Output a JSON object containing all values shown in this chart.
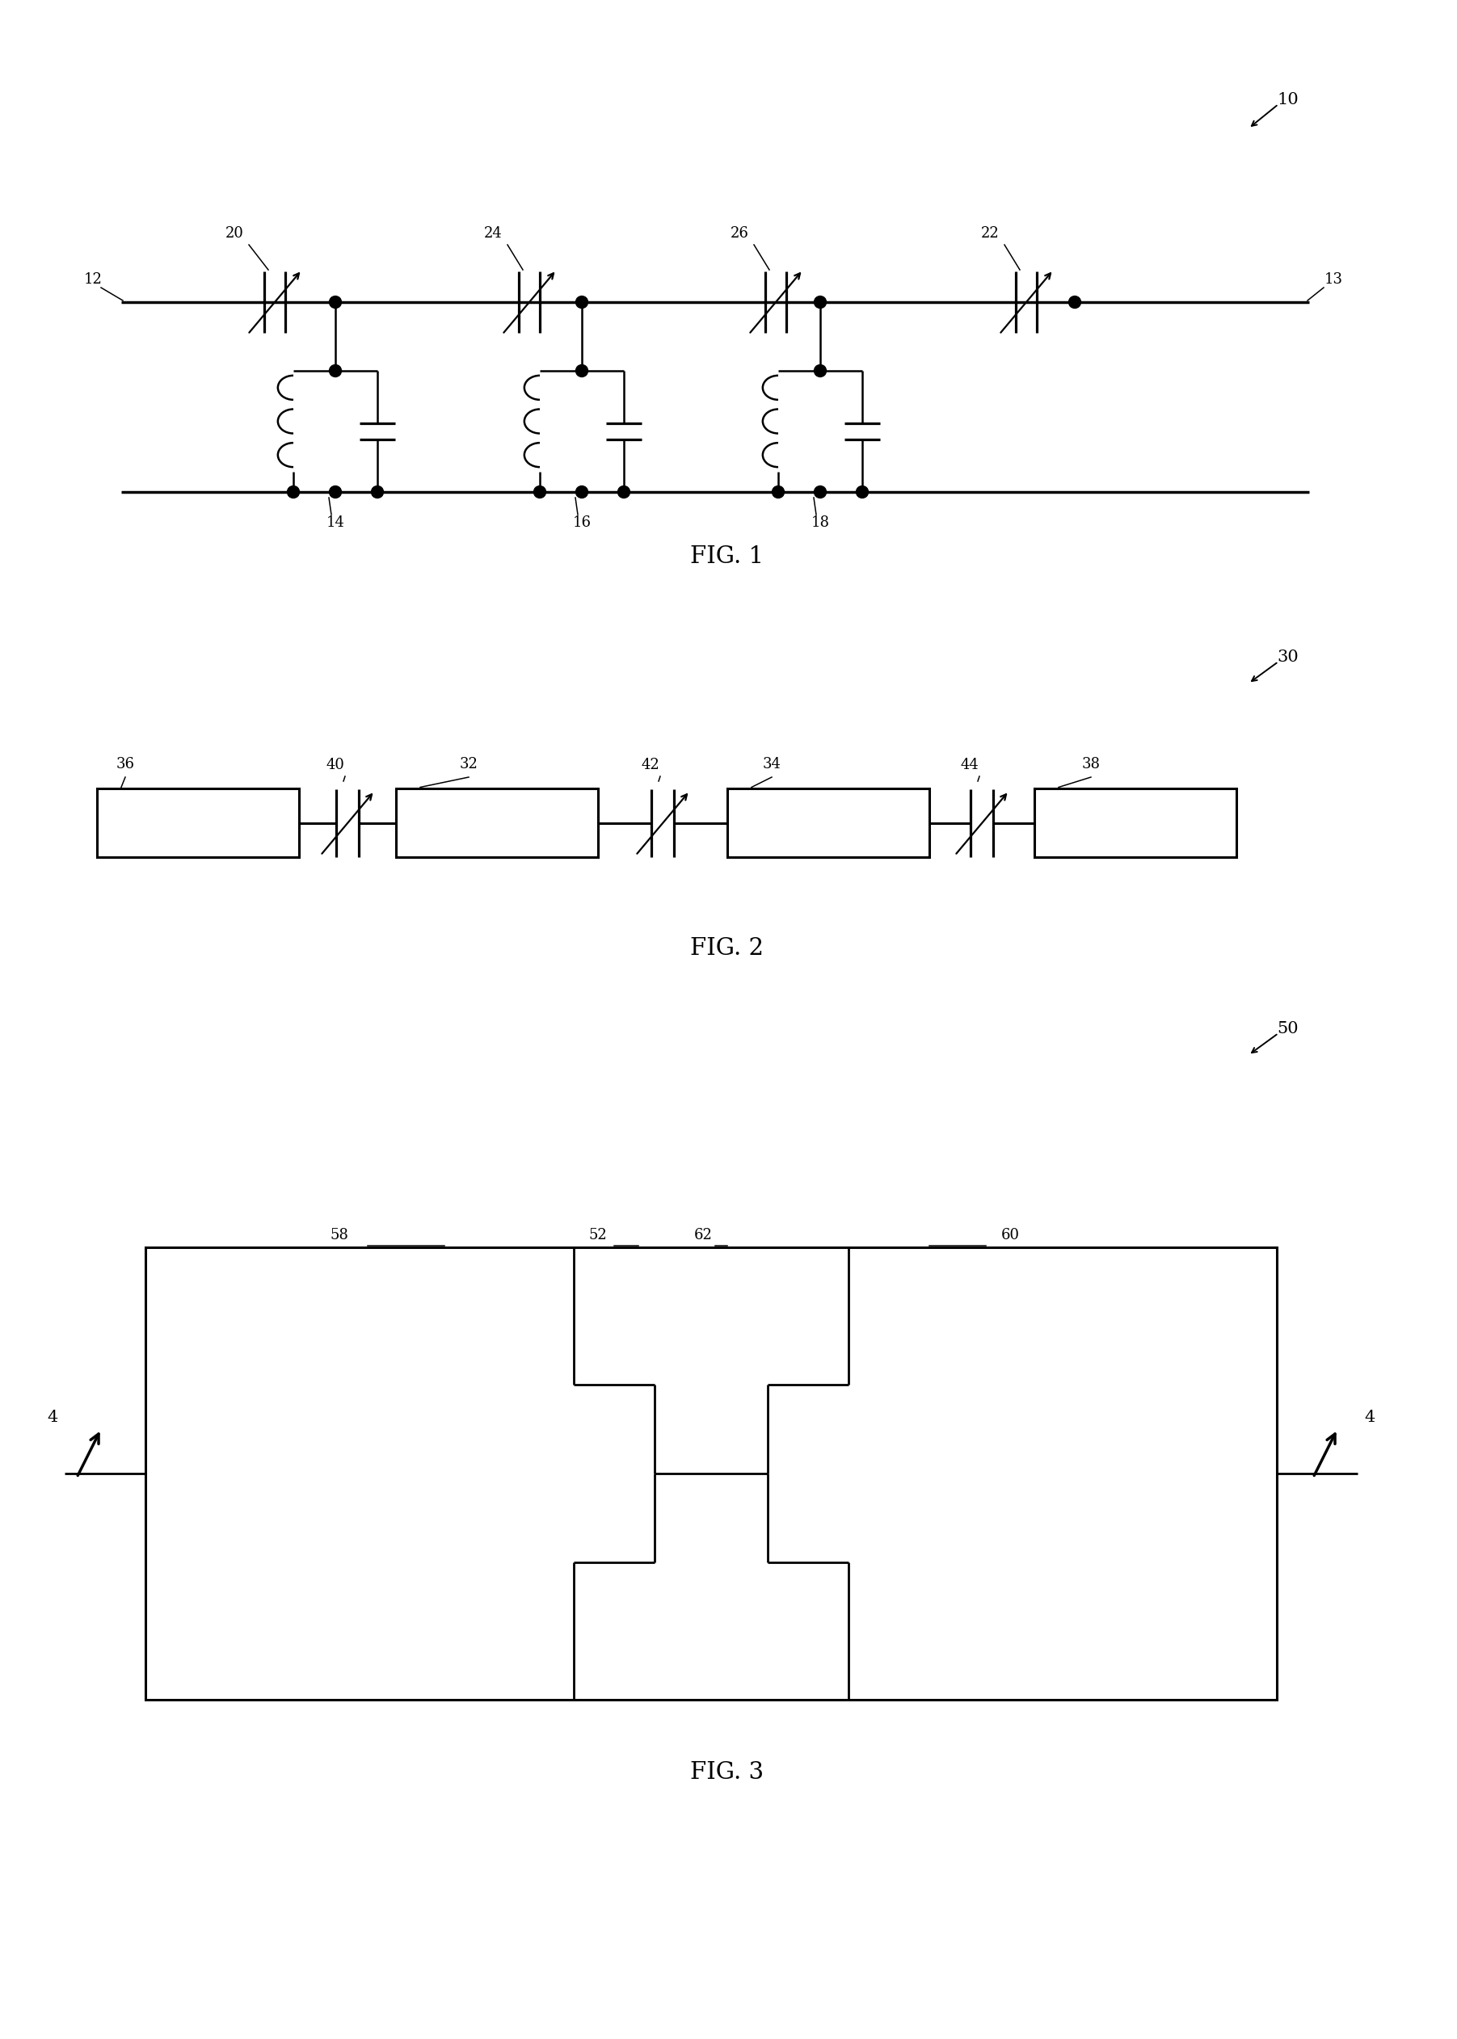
{
  "bg_color": "#ffffff",
  "line_color": "#000000",
  "fig_width": 18.03,
  "fig_height": 25.24,
  "fig1_label": "FIG. 1",
  "fig2_label": "FIG. 2",
  "fig3_label": "FIG. 3",
  "ref_10": "10",
  "ref_30": "30",
  "ref_50": "50"
}
